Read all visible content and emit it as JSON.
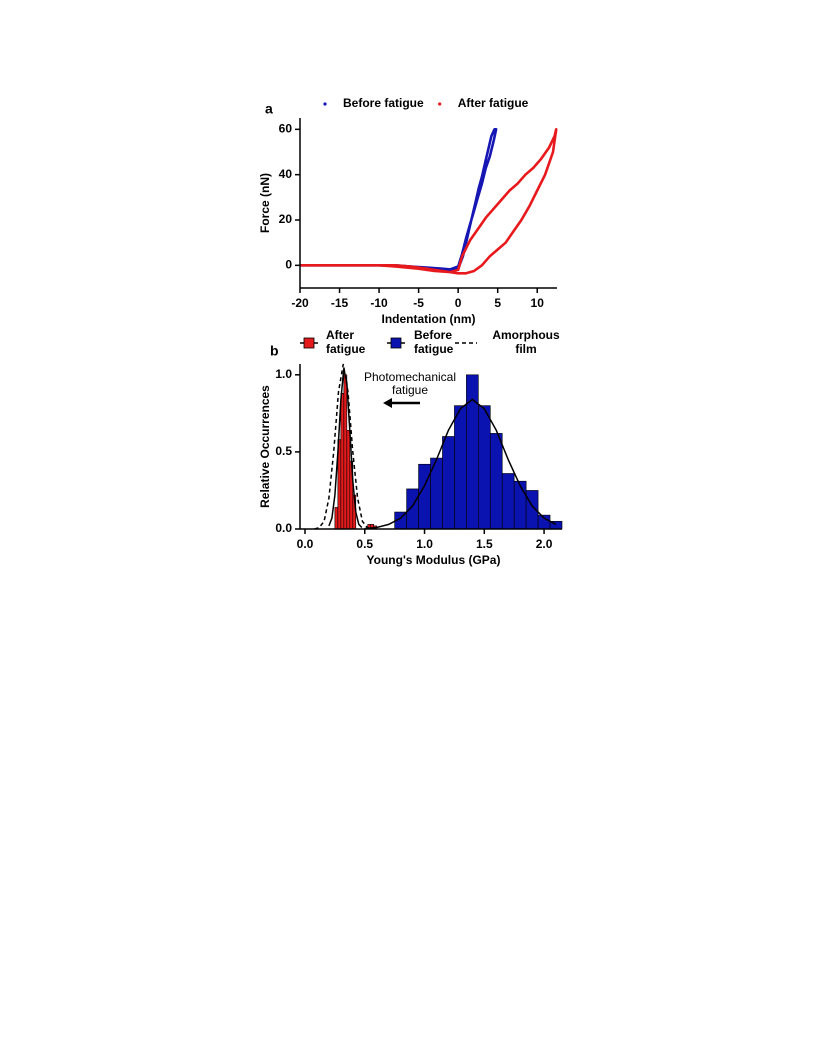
{
  "chart_data": [
    {
      "type": "line",
      "label": "a",
      "xlabel": "Indentation (nm)",
      "ylabel": "Force (nN)",
      "xlim": [
        -20,
        12.5
      ],
      "xticks": [
        -20,
        -15,
        -10,
        -5,
        0,
        5,
        10
      ],
      "ylim": [
        -10,
        65
      ],
      "yticks": [
        0,
        20,
        40,
        60
      ],
      "series": [
        {
          "name": "Before fatigue",
          "color": "#1616b4",
          "x": [
            -20,
            -15,
            -10,
            -8,
            -6,
            -4,
            -2,
            -1,
            0,
            0.5,
            1,
            1.5,
            2,
            2.5,
            3,
            3.5,
            4,
            4.5,
            4.8,
            4.6,
            4.2,
            3.8,
            3.4,
            3,
            2.6,
            2.2,
            1.8,
            1.4,
            1,
            0.6,
            0,
            -1,
            -3,
            -5,
            -8,
            -10,
            -15,
            -20
          ],
          "values": [
            0,
            0,
            0,
            0,
            -0.5,
            -1,
            -1.5,
            -1.8,
            -0.5,
            5,
            12,
            18,
            24,
            30,
            36,
            43,
            48,
            55,
            60,
            60,
            57,
            51,
            45,
            39,
            34,
            28,
            22,
            16,
            10,
            4,
            -1.5,
            -2.5,
            -2,
            -1,
            -0.3,
            0,
            0,
            0
          ]
        },
        {
          "name": "After fatigue",
          "color": "#e8191c",
          "x": [
            -20,
            -15,
            -10,
            -8,
            -6,
            -4,
            -2,
            0,
            1,
            2,
            3,
            4,
            5,
            6,
            7,
            8,
            9,
            10,
            11,
            12,
            12.4,
            12.2,
            11.5,
            10.5,
            9.5,
            8.5,
            7.5,
            6.5,
            5.5,
            4.5,
            3.5,
            2.5,
            1.5,
            0.5,
            0,
            -1,
            -3,
            -5,
            -8,
            -10,
            -15,
            -20
          ],
          "values": [
            0,
            0,
            0,
            0,
            -0.5,
            -1.5,
            -2.5,
            -3.5,
            -3.5,
            -2.5,
            0,
            4,
            7,
            10,
            15,
            20,
            26,
            33,
            40,
            50,
            60,
            57,
            52,
            47,
            43,
            40,
            36,
            33,
            29,
            25,
            21,
            16,
            11,
            4,
            -2,
            -3,
            -2.5,
            -1.5,
            -0.5,
            0,
            0,
            0
          ]
        }
      ]
    },
    {
      "type": "histogram",
      "label": "b",
      "xlabel": "Young's Modulus (GPa)",
      "ylabel": "Relative Occurrences",
      "annotation": "Photomechanical fatigue",
      "xlim": [
        0,
        2.15
      ],
      "xticks": [
        {
          "value": 0,
          "label": "0.0"
        },
        0.5,
        {
          "value": 1,
          "label": "1.0"
        },
        1.5,
        {
          "value": 2,
          "label": "2.0"
        }
      ],
      "ylim": [
        0,
        1.07
      ],
      "yticks": [
        {
          "value": 0,
          "label": "0.0"
        },
        0.5,
        {
          "value": 1,
          "label": "1.0"
        }
      ],
      "series": [
        {
          "name": "After fatigue",
          "color": "#e41a1c",
          "bins": [
            0.25,
            0.275,
            0.3,
            0.325,
            0.35,
            0.375,
            0.4,
            0.425,
            0.45,
            0.475,
            0.5,
            0.525,
            0.55,
            0.575,
            0.6,
            0.625,
            0.65
          ],
          "values": [
            0.14,
            0.58,
            0.88,
            1.0,
            0.64,
            0.44,
            0.22,
            0,
            0,
            0,
            0,
            0.03,
            0.03,
            0.02,
            0,
            0
          ],
          "fit": {
            "x": [
              0.2,
              0.225,
              0.25,
              0.275,
              0.3,
              0.325,
              0.35,
              0.375,
              0.4,
              0.425,
              0.45,
              0.475
            ],
            "values": [
              0.02,
              0.07,
              0.22,
              0.5,
              0.84,
              1.04,
              0.95,
              0.64,
              0.31,
              0.11,
              0.03,
              0.01
            ]
          }
        },
        {
          "name": "Before fatigue",
          "color": "#0a12b0",
          "bins": [
            0.75,
            0.85,
            0.95,
            1.05,
            1.15,
            1.25,
            1.35,
            1.45,
            1.55,
            1.65,
            1.75,
            1.85,
            1.95,
            2.05,
            2.15
          ],
          "values": [
            0.11,
            0.26,
            0.42,
            0.46,
            0.6,
            0.8,
            1.0,
            0.8,
            0.62,
            0.36,
            0.31,
            0.25,
            0.09,
            0.05
          ],
          "fit": {
            "x": [
              0.5,
              0.6,
              0.7,
              0.8,
              0.9,
              1.0,
              1.1,
              1.2,
              1.3,
              1.4,
              1.5,
              1.6,
              1.7,
              1.8,
              1.9,
              2.0,
              2.1
            ],
            "values": [
              0.003,
              0.01,
              0.03,
              0.07,
              0.15,
              0.28,
              0.45,
              0.64,
              0.78,
              0.84,
              0.78,
              0.64,
              0.45,
              0.28,
              0.15,
              0.07,
              0.03
            ]
          }
        },
        {
          "name": "Amorphous film",
          "color": "#000000",
          "dashed": true,
          "x": [
            0.08,
            0.12,
            0.16,
            0.2,
            0.24,
            0.28,
            0.32,
            0.36,
            0.4,
            0.44,
            0.48,
            0.52,
            0.56
          ],
          "values": [
            0,
            0.01,
            0.05,
            0.2,
            0.5,
            0.89,
            1.07,
            0.89,
            0.5,
            0.2,
            0.05,
            0.01,
            0
          ]
        }
      ]
    }
  ]
}
